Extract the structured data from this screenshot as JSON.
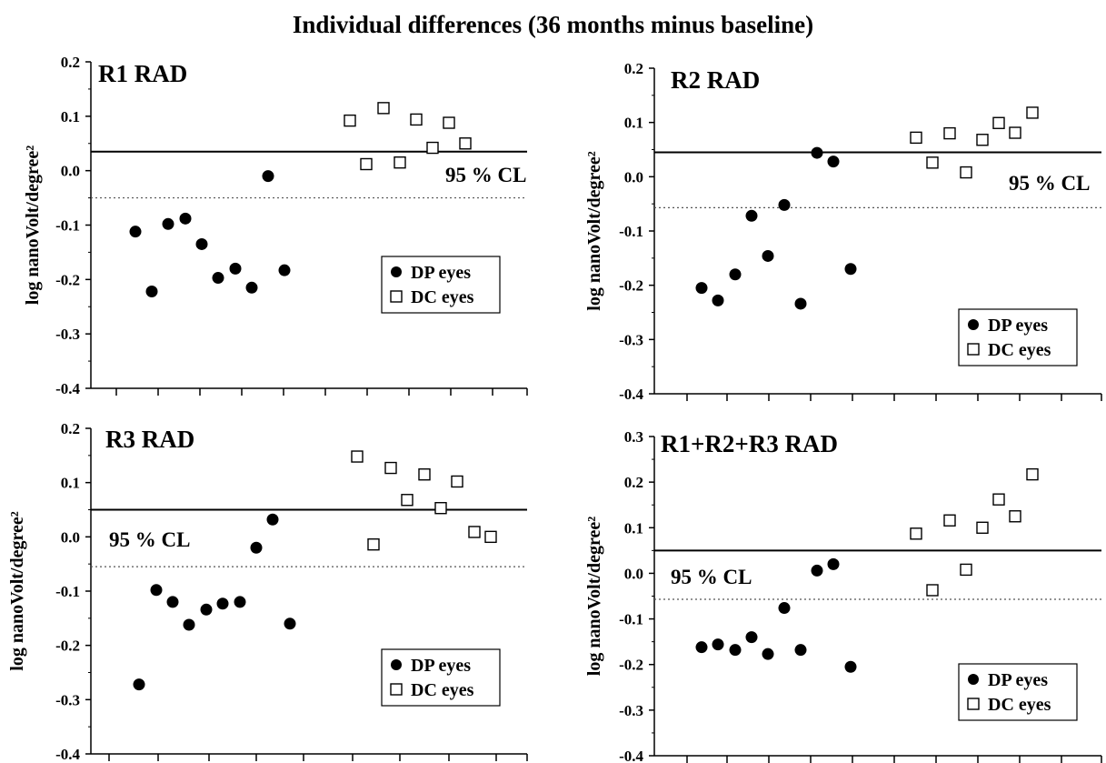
{
  "title": "Individual differences  (36 months minus baseline)",
  "chart_data": [
    {
      "type": "scatter",
      "title": "R1 RAD",
      "xlabel": "",
      "ylabel": "log nanoVolt/degree²",
      "ylim": [
        -0.4,
        0.2
      ],
      "yticks": [
        "0.2",
        "0.1",
        "0.0",
        "-0.1",
        "-0.2",
        "-0.3",
        "-0.4"
      ],
      "cl_upper": 0.035,
      "cl_lower": -0.05,
      "cl_label": "95 % CL",
      "legend": [
        "DP eyes",
        "DC eyes"
      ],
      "legend_position": "lower-right",
      "series": [
        {
          "name": "DP eyes",
          "marker": "filled-circle",
          "x": [
            1,
            2,
            3,
            4,
            5,
            6,
            7,
            8,
            9,
            10
          ],
          "y": [
            -0.112,
            -0.222,
            -0.098,
            -0.088,
            -0.135,
            -0.197,
            -0.18,
            -0.01,
            -0.215,
            -0.183
          ]
        },
        {
          "name": "DC eyes",
          "marker": "open-square",
          "x": [
            13,
            14,
            15,
            16,
            17,
            18,
            19,
            20
          ],
          "y": [
            0.092,
            0.012,
            0.115,
            0.015,
            0.094,
            0.042,
            0.088,
            0.05
          ]
        }
      ]
    },
    {
      "type": "scatter",
      "title": "R2 RAD",
      "xlabel": "",
      "ylabel": "log nanoVolt/degree²",
      "ylim": [
        -0.4,
        0.2
      ],
      "yticks": [
        "0.2",
        "0.1",
        "0.0",
        "-0.1",
        "-0.2",
        "-0.3",
        "-0.4"
      ],
      "cl_upper": 0.045,
      "cl_lower": -0.057,
      "cl_label": "95 % CL",
      "legend": [
        "DP eyes",
        "DC eyes"
      ],
      "legend_position": "lower-right",
      "series": [
        {
          "name": "DP eyes",
          "marker": "filled-circle",
          "x": [
            1,
            2,
            3,
            4,
            5,
            6,
            7,
            8,
            9,
            10
          ],
          "y": [
            -0.205,
            -0.228,
            -0.18,
            -0.072,
            -0.146,
            -0.052,
            -0.234,
            0.044,
            0.028,
            -0.17
          ]
        },
        {
          "name": "DC eyes",
          "marker": "open-square",
          "x": [
            13,
            14,
            15,
            16,
            17,
            18,
            19,
            20
          ],
          "y": [
            0.072,
            0.026,
            0.08,
            0.008,
            0.068,
            0.099,
            0.081,
            0.118
          ]
        }
      ]
    },
    {
      "type": "scatter",
      "title": "R3 RAD",
      "xlabel": "",
      "ylabel": "log nanoVolt/degree²",
      "ylim": [
        -0.4,
        0.2
      ],
      "yticks": [
        "0.2",
        "0.1",
        "0.0",
        "-0.1",
        "-0.2",
        "-0.3",
        "-0.4"
      ],
      "cl_upper": 0.05,
      "cl_lower": -0.055,
      "cl_label": "95 % CL",
      "legend": [
        "DP eyes",
        "DC eyes"
      ],
      "legend_position": "lower-right",
      "series": [
        {
          "name": "DP eyes",
          "marker": "filled-circle",
          "x": [
            1,
            2,
            3,
            4,
            5,
            6,
            7,
            8,
            9,
            10
          ],
          "y": [
            -0.272,
            -0.098,
            -0.12,
            -0.162,
            -0.134,
            -0.123,
            -0.12,
            -0.02,
            0.032,
            -0.16
          ]
        },
        {
          "name": "DC eyes",
          "marker": "open-square",
          "x": [
            13,
            14,
            15,
            16,
            17,
            18,
            19,
            20,
            21
          ],
          "y": [
            0.148,
            -0.014,
            0.127,
            0.068,
            0.115,
            0.053,
            0.102,
            0.009,
            0.0
          ]
        }
      ]
    },
    {
      "type": "scatter",
      "title": "R1+R2+R3 RAD",
      "xlabel": "",
      "ylabel": "log nanoVolt/degree²",
      "ylim": [
        -0.4,
        0.3
      ],
      "yticks": [
        "0.3",
        "0.2",
        "0.1",
        "0.0",
        "-0.1",
        "-0.2",
        "-0.3",
        "-0.4"
      ],
      "cl_upper": 0.05,
      "cl_lower": -0.057,
      "cl_label": "95 % CL",
      "legend": [
        "DP eyes",
        "DC eyes"
      ],
      "legend_position": "lower-right",
      "series": [
        {
          "name": "DP eyes",
          "marker": "filled-circle",
          "x": [
            1,
            2,
            3,
            4,
            5,
            6,
            7,
            8,
            9,
            10
          ],
          "y": [
            -0.162,
            -0.156,
            -0.168,
            -0.14,
            -0.177,
            -0.076,
            -0.168,
            0.006,
            0.02,
            -0.205
          ]
        },
        {
          "name": "DC eyes",
          "marker": "open-square",
          "x": [
            13,
            14,
            15,
            16,
            17,
            18,
            19,
            20
          ],
          "y": [
            0.087,
            -0.037,
            0.116,
            0.008,
            0.1,
            0.162,
            0.125,
            0.217
          ]
        }
      ]
    }
  ]
}
